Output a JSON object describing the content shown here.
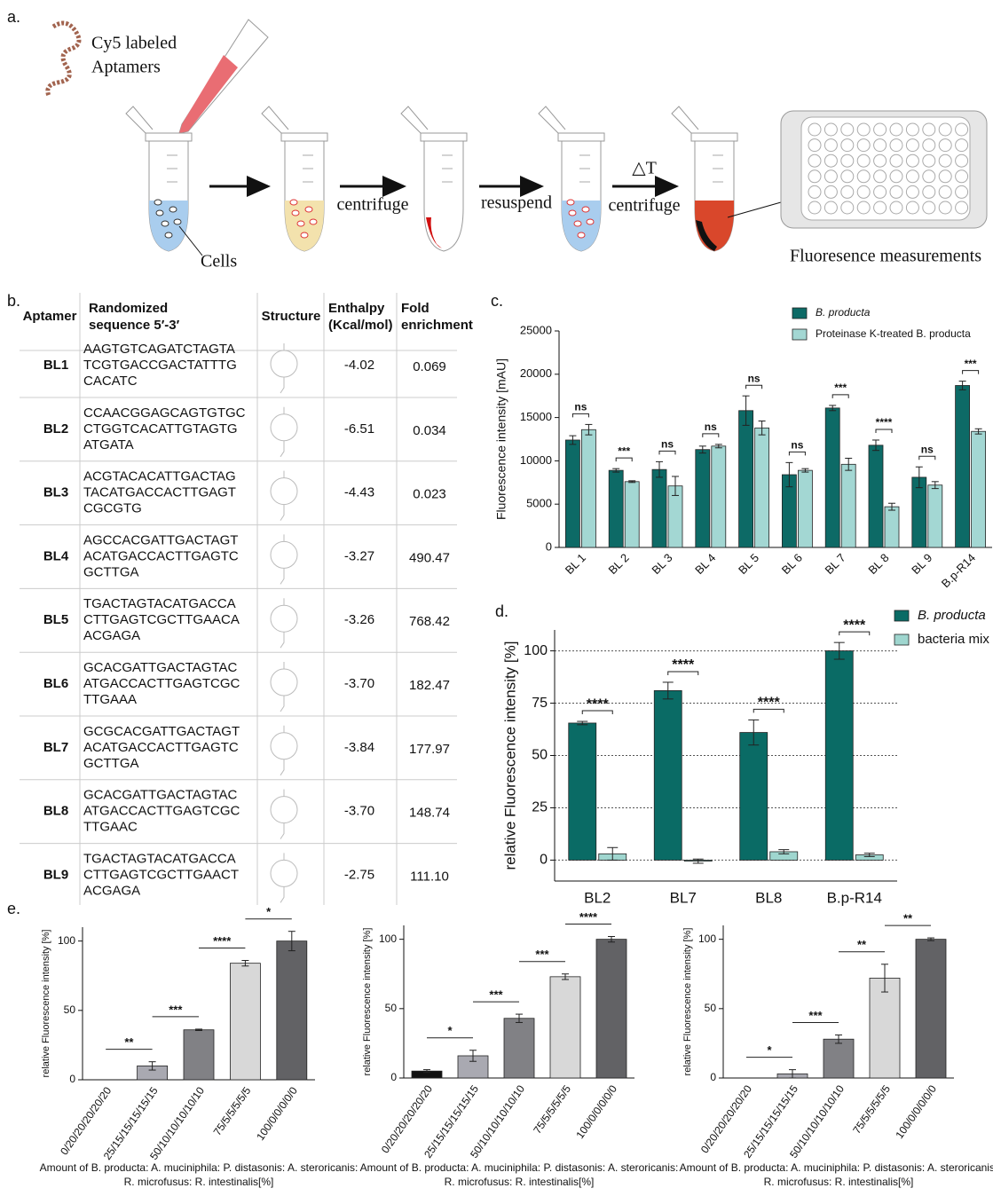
{
  "panel_labels": [
    "a.",
    "b.",
    "c.",
    "d.",
    "e."
  ],
  "diagram": {
    "reagent": [
      "Cy5 labeled",
      "Aptamers"
    ],
    "cells": "Cells",
    "steps": [
      "centrifuge",
      "resuspend",
      "△T",
      "centrifuge"
    ],
    "readout": "Fluoresence measurements"
  },
  "table": {
    "header": [
      [
        "Aptamer"
      ],
      [
        "Randomized",
        "sequence 5′-3′"
      ],
      [
        "Structure"
      ],
      [
        "Enthalpy",
        "(Kcal/mol)"
      ],
      [
        "Fold",
        "enrichment"
      ]
    ],
    "rows": [
      [
        "BL1",
        [
          "AAGTGTCAGATCTAGTA",
          "TCGTGACCGACTATTTG",
          "CACATC"
        ],
        "-4.02",
        "0.069"
      ],
      [
        "BL2",
        [
          "CCAACGGAGCAGTGTGC",
          "CTGGTCACATTGTAGTG",
          "ATGATA"
        ],
        "-6.51",
        "0.034"
      ],
      [
        "BL3",
        [
          "ACGTACACATTGACTAG",
          "TACATGACCACTTGAGT",
          "CGCGTG"
        ],
        "-4.43",
        "0.023"
      ],
      [
        "BL4",
        [
          "AGCCACGATTGACTAGT",
          "ACATGACCACTTGAGTC",
          "GCTTGA"
        ],
        "-3.27",
        "490.47"
      ],
      [
        "BL5",
        [
          "TGACTAGTACATGACCA",
          "CTTGAGTCGCTTGAACA",
          "ACGAGA"
        ],
        "-3.26",
        "768.42"
      ],
      [
        "BL6",
        [
          "GCACGATTGACTAGTAC",
          "ATGACCACTTGAGTCGC",
          "TTGAAA"
        ],
        "-3.70",
        "182.47"
      ],
      [
        "BL7",
        [
          "GCGCACGATTGACTAGT",
          "ACATGACCACTTGAGTC",
          "GCTTGA"
        ],
        "-3.84",
        "177.97"
      ],
      [
        "BL8",
        [
          "GCACGATTGACTAGTAC",
          "ATGACCACTTGAGTCGC",
          "TTGAAC"
        ],
        "-3.70",
        "148.74"
      ],
      [
        "BL9",
        [
          "TGACTAGTACATGACCA",
          "CTTGAGTCGCTTGAACT",
          "ACGAGA"
        ],
        "-2.75",
        "111.10"
      ]
    ]
  },
  "chart_data": [
    {
      "type": "bar",
      "ylabel": "Fluorescence intensity [mAU]",
      "categories": [
        "BL 1",
        "BL 2",
        "BL 3",
        "BL 4",
        "BL 5",
        "BL 6",
        "BL 7",
        "BL 8",
        "BL 9",
        "B.p-R14"
      ],
      "series": [
        {
          "name": "B. producta",
          "color": "#0d6a66",
          "values": [
            12400,
            8900,
            9000,
            11300,
            15800,
            8400,
            16100,
            11800,
            8100,
            18700
          ],
          "errors": [
            500,
            200,
            900,
            400,
            1700,
            1400,
            300,
            600,
            1200,
            500
          ]
        },
        {
          "name": "Proteinase K-treated B. producta",
          "color": "#a3d7d3",
          "values": [
            13600,
            7600,
            7100,
            11700,
            13800,
            8900,
            9600,
            4700,
            7200,
            13400
          ],
          "errors": [
            600,
            100,
            1100,
            200,
            800,
            200,
            700,
            400,
            400,
            300
          ]
        }
      ],
      "significance": [
        "ns",
        "***",
        "ns",
        "ns",
        "ns",
        "ns",
        "***",
        "****",
        "ns",
        "***"
      ],
      "ylim": [
        0,
        25000
      ],
      "yticks": [
        0,
        5000,
        10000,
        15000,
        20000,
        25000
      ],
      "grid": false
    },
    {
      "type": "bar",
      "ylabel": "relative Fluorescence intensity [%]",
      "categories": [
        "BL2",
        "BL7",
        "BL8",
        "B.p-R14"
      ],
      "series": [
        {
          "name": "B. producta",
          "color": "#0a6b65",
          "values": [
            65.5,
            81,
            61,
            100
          ],
          "errors": [
            0.8,
            4,
            6,
            4
          ]
        },
        {
          "name": "bacteria mix",
          "color": "#9fd6cf",
          "values": [
            3,
            -0.5,
            4,
            2.5
          ],
          "errors": [
            3,
            1,
            1,
            0.8
          ]
        }
      ],
      "significance": [
        "****",
        "****",
        "****",
        "****"
      ],
      "ylim": [
        -10,
        110
      ],
      "yticks": [
        0,
        25,
        50,
        75,
        100
      ],
      "grid": true
    },
    {
      "type": "bar",
      "ylabel": "relative Fluorescence intensity [%]",
      "xlabel": "Amount of B. producta: A. muciniphila: P. distasonis: A. steroricanis: R. microfusus: R. intestinalis[%]",
      "categories": [
        "0/20/20/20/20/20",
        "25/15/15/15/15/15",
        "50/10/10/10/10/10",
        "75/5/5/5/5/5",
        "100/0/0/0/0/0"
      ],
      "values": [
        0,
        10,
        36,
        84,
        100
      ],
      "errors": [
        null,
        3,
        0.5,
        2,
        7
      ],
      "colors": [
        "#111111",
        "#a9a9b1",
        "#818185",
        "#d8d8d8",
        "#626265"
      ],
      "significance": [
        "**",
        "***",
        "****",
        "*"
      ],
      "ylim": [
        0,
        110
      ],
      "yticks": [
        0,
        50,
        100
      ],
      "grid": false
    },
    {
      "type": "bar",
      "ylabel": "relative Fluorescence intensity [%]",
      "xlabel": "Amount of B. producta: A. muciniphila: P. distasonis: A. steroricanis: R. microfusus: R. intestinalis[%]",
      "categories": [
        "0/20/20/20/20/20",
        "25/15/15/15/15/15",
        "50/10/10/10/10/10",
        "75/5/5/5/5/5",
        "100/0/0/0/0/0"
      ],
      "values": [
        5,
        16,
        43,
        73,
        100
      ],
      "errors": [
        1,
        4,
        3,
        2,
        2
      ],
      "colors": [
        "#111111",
        "#a9a9b1",
        "#818185",
        "#d8d8d8",
        "#626265"
      ],
      "significance": [
        "*",
        "***",
        "***",
        "****"
      ],
      "ylim": [
        0,
        110
      ],
      "yticks": [
        0,
        50,
        100
      ],
      "grid": false
    },
    {
      "type": "bar",
      "ylabel": "relative Fluorescence intensity [%]",
      "xlabel": "Amount of B. producta: A. muciniphila: P. distasonis: A. steroricanis: R. microfusus: R. intestinalis[%]",
      "categories": [
        "0/20/20/20/20/20",
        "25/15/15/15/15/15",
        "50/10/10/10/10/10",
        "75/5/5/5/5/5",
        "100/0/0/0/0/0"
      ],
      "values": [
        0,
        3,
        28,
        72,
        100
      ],
      "errors": [
        null,
        3,
        3,
        10,
        1
      ],
      "colors": [
        "#111111",
        "#a9a9b1",
        "#818185",
        "#d8d8d8",
        "#626265"
      ],
      "significance": [
        "*",
        "***",
        "**",
        "**"
      ],
      "ylim": [
        0,
        110
      ],
      "yticks": [
        0,
        50,
        100
      ],
      "grid": false
    }
  ]
}
